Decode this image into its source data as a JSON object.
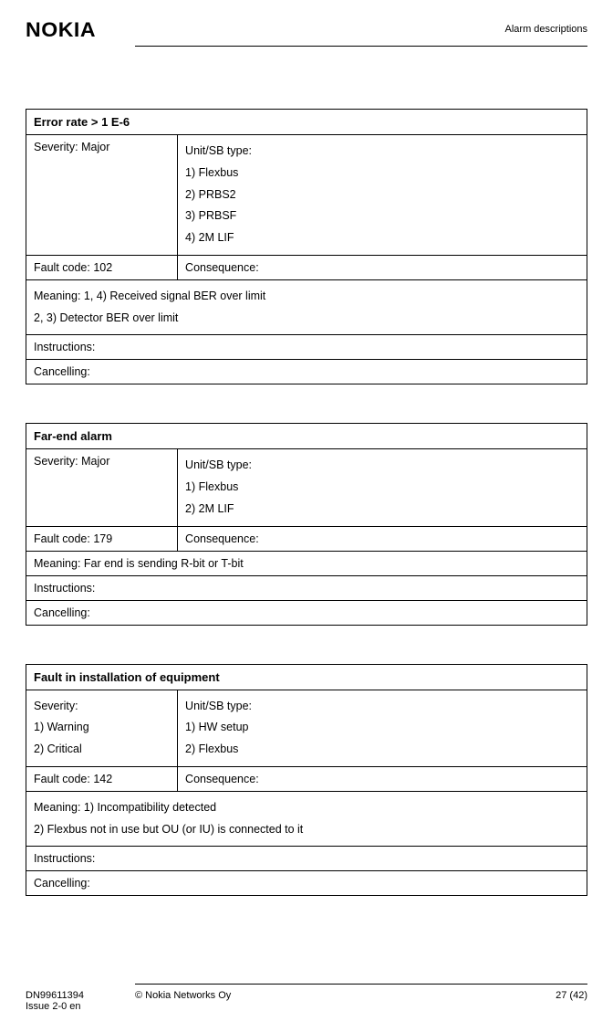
{
  "header": {
    "logo": "NOKIA",
    "section_title": "Alarm descriptions"
  },
  "tables": [
    {
      "title": "Error rate > 1 E-6",
      "severity_label": "Severity: Major",
      "unit_label": "Unit/SB type:",
      "unit_items": [
        "1) Flexbus",
        "2) PRBS2",
        "3) PRBSF",
        "4) 2M LIF"
      ],
      "fault_code": "Fault code: 102",
      "consequence": "Consequence:",
      "meaning_lines": [
        "Meaning: 1, 4) Received signal BER over limit",
        "2, 3) Detector BER over limit"
      ],
      "instructions": "Instructions:",
      "cancelling": "Cancelling:"
    },
    {
      "title": "Far-end alarm",
      "severity_label": "Severity: Major",
      "unit_label": "Unit/SB type:",
      "unit_items": [
        "1) Flexbus",
        "2) 2M LIF"
      ],
      "fault_code": "Fault code: 179",
      "consequence": "Consequence:",
      "meaning_lines": [
        "Meaning: Far end is sending R-bit or T-bit"
      ],
      "instructions": "Instructions:",
      "cancelling": "Cancelling:"
    },
    {
      "title": "Fault in installation of equipment",
      "severity_lines": [
        "Severity:",
        "1) Warning",
        "2) Critical"
      ],
      "unit_label": "Unit/SB type:",
      "unit_items": [
        "1) HW setup",
        "2) Flexbus"
      ],
      "fault_code": "Fault code: 142",
      "consequence": "Consequence:",
      "meaning_lines": [
        "Meaning: 1) Incompatibility detected",
        "2) Flexbus not in use but OU (or IU) is connected to it"
      ],
      "instructions": "Instructions:",
      "cancelling": "Cancelling:"
    }
  ],
  "footer": {
    "doc_id": "DN99611394",
    "issue": "Issue 2-0 en",
    "copyright": "© Nokia Networks Oy",
    "page": "27 (42)"
  }
}
